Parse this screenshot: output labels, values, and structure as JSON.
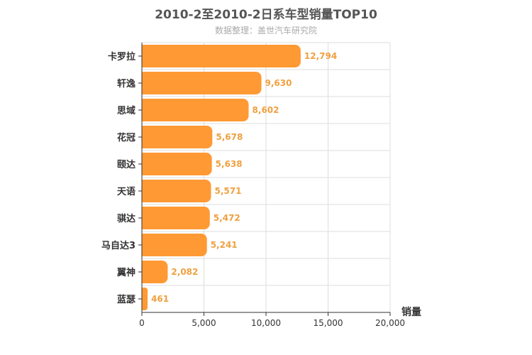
{
  "chart_data": {
    "type": "bar",
    "orientation": "horizontal",
    "title": "2010-2至2010-2日系车型销量TOP10",
    "subtitle": "数据整理：盖世汽车研究院",
    "categories": [
      "卡罗拉",
      "轩逸",
      "思域",
      "花冠",
      "颐达",
      "天语",
      "骐达",
      "马自达3",
      "翼神",
      "蓝瑟"
    ],
    "values": [
      12794,
      9630,
      8602,
      5678,
      5638,
      5571,
      5472,
      5241,
      2082,
      461
    ],
    "value_labels": [
      "12,794",
      "9,630",
      "8,602",
      "5,678",
      "5,638",
      "5,571",
      "5,472",
      "5,241",
      "2,082",
      "461"
    ],
    "xlabel": "销量",
    "ylabel": "",
    "xlim": [
      0,
      20000
    ],
    "ticks": [
      0,
      5000,
      10000,
      15000,
      20000
    ],
    "tick_labels": [
      "0",
      "5,000",
      "10,000",
      "15,000",
      "20,000"
    ],
    "grid": true,
    "bar_color": "#ff9933",
    "label_color": "#f0a040"
  }
}
